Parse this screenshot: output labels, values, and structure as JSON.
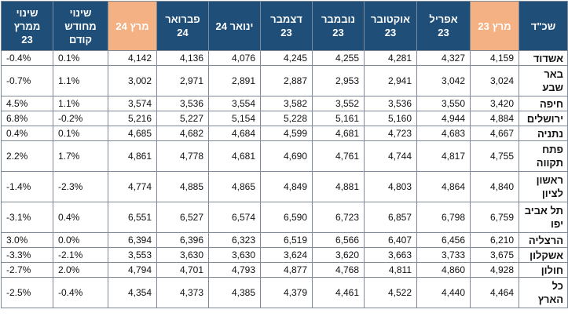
{
  "headers": [
    "שכ\"ד",
    "מרץ 23",
    "אפריל\n23",
    "אוקטובר\n23",
    "נובמבר\n23",
    "דצמבר\n23",
    "ינואר 24",
    "פברואר\n24",
    "מרץ 24",
    "שינוי\nמחודש\nקודם",
    "שינוי\nממרץ\n23"
  ],
  "rows": [
    {
      "city": "אשדוד",
      "values": [
        "4,159",
        "4,327",
        "4,281",
        "4,255",
        "4,245",
        "4,076",
        "4,136",
        "4,142"
      ],
      "mom": "0.1%",
      "yoy": "-0.4%",
      "tall": false
    },
    {
      "city": "באר\nשבע",
      "values": [
        "3,024",
        "3,042",
        "2,941",
        "2,953",
        "2,887",
        "2,891",
        "2,971",
        "3,002"
      ],
      "mom": "1.1%",
      "yoy": "-0.7%",
      "tall": true
    },
    {
      "city": "חיפה",
      "values": [
        "3,420",
        "3,550",
        "3,536",
        "3,552",
        "3,582",
        "3,554",
        "3,536",
        "3,574"
      ],
      "mom": "1.1%",
      "yoy": "4.5%",
      "tall": false
    },
    {
      "city": "ירושלים",
      "values": [
        "4,884",
        "4,944",
        "5,160",
        "5,161",
        "5,228",
        "5,154",
        "5,227",
        "5,216"
      ],
      "mom": "-0.2%",
      "yoy": "6.8%",
      "tall": false
    },
    {
      "city": "נתניה",
      "values": [
        "4,667",
        "4,683",
        "4,723",
        "4,681",
        "4,599",
        "4,684",
        "4,682",
        "4,685"
      ],
      "mom": "0.1%",
      "yoy": "0.4%",
      "tall": false
    },
    {
      "city": "פתח\nתקווה",
      "values": [
        "4,755",
        "4,817",
        "4,744",
        "4,761",
        "4,690",
        "4,681",
        "4,778",
        "4,861"
      ],
      "mom": "1.7%",
      "yoy": "2.2%",
      "tall": true
    },
    {
      "city": "ראשון\nלציון",
      "values": [
        "4,840",
        "4,864",
        "4,803",
        "4,881",
        "4,849",
        "4,865",
        "4,885",
        "4,774"
      ],
      "mom": "-2.3%",
      "yoy": "-1.4%",
      "tall": true
    },
    {
      "city": "תל אביב\nיפו",
      "values": [
        "6,759",
        "6,798",
        "6,857",
        "6,723",
        "6,590",
        "6,574",
        "6,527",
        "6,551"
      ],
      "mom": "0.4%",
      "yoy": "-3.1%",
      "tall": true
    },
    {
      "city": "הרצליה",
      "values": [
        "6,210",
        "6,456",
        "6,407",
        "6,566",
        "6,519",
        "6,323",
        "6,396",
        "6,394"
      ],
      "mom": "0.0%",
      "yoy": "3.0%",
      "tall": false
    },
    {
      "city": "אשקלון",
      "values": [
        "3,675",
        "3,733",
        "3,663",
        "3,620",
        "3,624",
        "3,630",
        "3,630",
        "3,553"
      ],
      "mom": "-2.1%",
      "yoy": "-3.3%",
      "tall": false
    },
    {
      "city": "חולון",
      "values": [
        "4,928",
        "4,860",
        "4,811",
        "4,768",
        "4,877",
        "4,793",
        "4,701",
        "4,794"
      ],
      "mom": "2.0%",
      "yoy": "-2.7%",
      "tall": false
    },
    {
      "city": "כל\nהארץ",
      "values": [
        "4,464",
        "4,440",
        "4,522",
        "4,461",
        "4,379",
        "4,385",
        "4,373",
        "4,354"
      ],
      "mom": "-0.4%",
      "yoy": "-2.5%",
      "tall": true
    }
  ],
  "colors": {
    "header_blue": "#1f4e79",
    "header_orange": "#f4b183",
    "border": "#7f8a99"
  }
}
